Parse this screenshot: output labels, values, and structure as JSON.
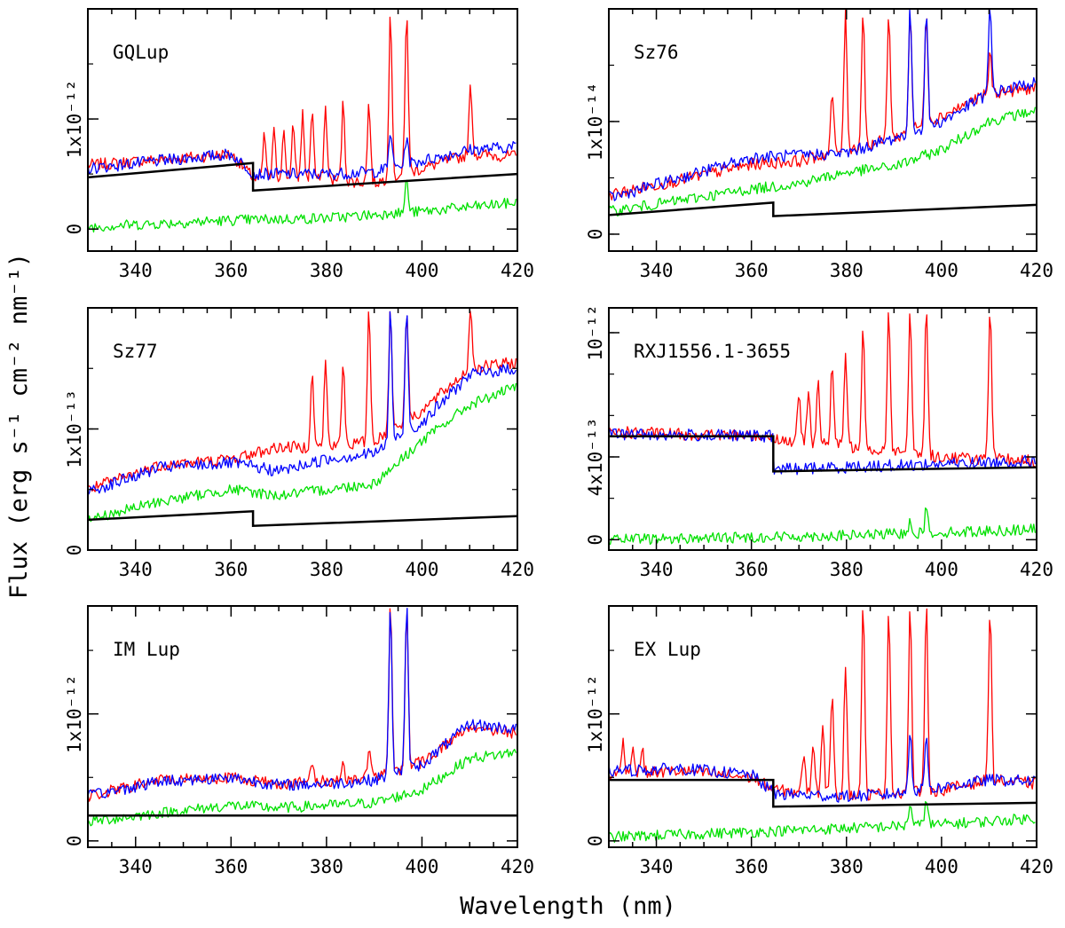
{
  "figure": {
    "xlabel": "Wavelength (nm)",
    "ylabel": "Flux (erg s⁻¹ cm⁻² nm⁻¹)",
    "colors": {
      "red": "#ff0000",
      "blue": "#0000ff",
      "green": "#00e000",
      "model": "#000000"
    }
  },
  "chart_data": [
    {
      "type": "line",
      "title": "GQLup",
      "xlim": [
        330,
        420
      ],
      "ylim": [
        -0.2,
        2.0
      ],
      "x_ticks": [
        340,
        360,
        380,
        400,
        420
      ],
      "y_ticks": [
        {
          "value": 0,
          "label": "0"
        },
        {
          "value": 1,
          "label": "1x10⁻¹²"
        }
      ],
      "y_unit": "1x10⁻¹²",
      "balmer_jump_nm": 364.6,
      "series": [
        {
          "color": "red",
          "x": [
            330,
            345,
            360,
            365,
            380,
            390,
            400,
            410,
            420
          ],
          "y": [
            0.58,
            0.63,
            0.68,
            0.45,
            0.45,
            0.42,
            0.55,
            0.68,
            0.66
          ],
          "lines": [
            [
              367,
              0.85
            ],
            [
              369,
              0.88
            ],
            [
              371,
              0.9
            ],
            [
              373,
              0.95
            ],
            [
              375,
              1.05
            ],
            [
              377,
              1.1
            ],
            [
              379.8,
              1.1
            ],
            [
              383.5,
              1.15
            ],
            [
              388.9,
              1.15
            ],
            [
              393.4,
              2.0
            ],
            [
              396.8,
              2.0
            ],
            [
              410.2,
              1.3
            ]
          ]
        },
        {
          "color": "blue",
          "x": [
            330,
            345,
            360,
            365,
            380,
            390,
            400,
            410,
            420
          ],
          "y": [
            0.55,
            0.62,
            0.68,
            0.5,
            0.5,
            0.52,
            0.62,
            0.72,
            0.75
          ],
          "lines": [
            [
              393.4,
              0.9
            ],
            [
              396.8,
              0.85
            ]
          ]
        },
        {
          "color": "green",
          "x": [
            330,
            360,
            380,
            400,
            420
          ],
          "y": [
            0.02,
            0.08,
            0.1,
            0.16,
            0.24
          ],
          "lines": [
            [
              393.4,
              0.18
            ],
            [
              396.8,
              0.45
            ]
          ]
        },
        {
          "color": "model",
          "x": [
            330,
            364.6,
            364.6,
            420
          ],
          "y": [
            0.47,
            0.6,
            0.35,
            0.5
          ]
        }
      ]
    },
    {
      "type": "line",
      "title": "Sz76",
      "xlim": [
        330,
        420
      ],
      "ylim": [
        -0.15,
        2.0
      ],
      "x_ticks": [
        340,
        360,
        380,
        400,
        420
      ],
      "y_ticks": [
        {
          "value": 0,
          "label": "0"
        },
        {
          "value": 1,
          "label": "1x10⁻¹⁴"
        }
      ],
      "y_unit": "1x10⁻¹⁴",
      "balmer_jump_nm": 364.6,
      "series": [
        {
          "color": "red",
          "x": [
            330,
            345,
            360,
            370,
            380,
            390,
            400,
            410,
            420
          ],
          "y": [
            0.35,
            0.48,
            0.62,
            0.65,
            0.75,
            0.85,
            1.05,
            1.25,
            1.3
          ],
          "lines": [
            [
              377,
              1.25
            ],
            [
              379.8,
              2.0
            ],
            [
              383.5,
              2.0
            ],
            [
              388.9,
              2.0
            ],
            [
              393.4,
              2.0
            ],
            [
              396.8,
              2.0
            ],
            [
              410.2,
              1.6
            ]
          ]
        },
        {
          "color": "blue",
          "x": [
            330,
            345,
            360,
            370,
            380,
            390,
            400,
            410,
            420
          ],
          "y": [
            0.32,
            0.5,
            0.68,
            0.7,
            0.72,
            0.85,
            1.0,
            1.25,
            1.35
          ],
          "lines": [
            [
              393.4,
              2.0
            ],
            [
              396.8,
              2.0
            ],
            [
              410.2,
              2.0
            ]
          ]
        },
        {
          "color": "green",
          "x": [
            330,
            345,
            360,
            370,
            380,
            390,
            400,
            410,
            420
          ],
          "y": [
            0.2,
            0.3,
            0.4,
            0.45,
            0.55,
            0.6,
            0.75,
            1.0,
            1.1
          ],
          "lines": []
        },
        {
          "color": "model",
          "x": [
            330,
            364.6,
            364.6,
            420
          ],
          "y": [
            0.17,
            0.28,
            0.16,
            0.26
          ]
        }
      ]
    },
    {
      "type": "line",
      "title": "Sz77",
      "xlim": [
        330,
        420
      ],
      "ylim": [
        0,
        2.0
      ],
      "x_ticks": [
        340,
        360,
        380,
        400,
        420
      ],
      "y_ticks": [
        {
          "value": 0,
          "label": "0"
        },
        {
          "value": 1,
          "label": "1x10⁻¹³"
        }
      ],
      "y_unit": "1x10⁻¹³",
      "balmer_jump_nm": 364.6,
      "series": [
        {
          "color": "red",
          "x": [
            330,
            345,
            360,
            370,
            380,
            390,
            400,
            410,
            420
          ],
          "y": [
            0.5,
            0.7,
            0.75,
            0.85,
            0.85,
            0.9,
            1.15,
            1.5,
            1.55
          ],
          "lines": [
            [
              377,
              1.5
            ],
            [
              379.8,
              1.55
            ],
            [
              383.5,
              1.55
            ],
            [
              388.9,
              2.0
            ],
            [
              393.4,
              2.0
            ],
            [
              396.8,
              2.0
            ],
            [
              410.2,
              2.0
            ]
          ]
        },
        {
          "color": "blue",
          "x": [
            330,
            345,
            360,
            370,
            380,
            390,
            400,
            410,
            420
          ],
          "y": [
            0.48,
            0.68,
            0.72,
            0.65,
            0.75,
            0.8,
            1.05,
            1.45,
            1.5
          ],
          "lines": [
            [
              393.4,
              2.0
            ],
            [
              396.8,
              2.0
            ]
          ]
        },
        {
          "color": "green",
          "x": [
            330,
            345,
            360,
            370,
            380,
            390,
            400,
            410,
            420
          ],
          "y": [
            0.25,
            0.4,
            0.5,
            0.45,
            0.5,
            0.55,
            0.9,
            1.2,
            1.35
          ],
          "lines": []
        },
        {
          "color": "model",
          "x": [
            330,
            364.6,
            364.6,
            420
          ],
          "y": [
            0.25,
            0.32,
            0.2,
            0.28
          ]
        }
      ]
    },
    {
      "type": "line",
      "title": "RXJ1556.1-3655",
      "xlim": [
        330,
        420
      ],
      "ylim": [
        -0.05,
        1.12
      ],
      "x_ticks": [
        340,
        360,
        380,
        400,
        420
      ],
      "y_ticks": [
        {
          "value": 0,
          "label": "0"
        },
        {
          "value": 0.4,
          "label": "4x10⁻¹³"
        },
        {
          "value": 1.0,
          "label": "10⁻¹²"
        }
      ],
      "y_unit": "10⁻¹²",
      "balmer_jump_nm": 364.6,
      "series": [
        {
          "color": "red",
          "x": [
            330,
            345,
            364.6,
            366,
            380,
            400,
            420
          ],
          "y": [
            0.52,
            0.51,
            0.5,
            0.48,
            0.45,
            0.4,
            0.38
          ],
          "lines": [
            [
              370,
              0.7
            ],
            [
              372,
              0.73
            ],
            [
              374,
              0.78
            ],
            [
              377,
              0.85
            ],
            [
              379.8,
              0.9
            ],
            [
              383.5,
              1.05
            ],
            [
              388.9,
              1.12
            ],
            [
              393.4,
              1.12
            ],
            [
              396.8,
              1.12
            ],
            [
              410.2,
              1.12
            ]
          ]
        },
        {
          "color": "blue",
          "x": [
            330,
            364.6,
            364.6,
            420
          ],
          "y": [
            0.51,
            0.5,
            0.34,
            0.38
          ],
          "lines": []
        },
        {
          "color": "green",
          "x": [
            330,
            380,
            420
          ],
          "y": [
            0.0,
            0.02,
            0.05
          ],
          "lines": [
            [
              393.4,
              0.1
            ],
            [
              396.8,
              0.15
            ]
          ]
        },
        {
          "color": "model",
          "x": [
            330,
            364.6,
            364.6,
            420
          ],
          "y": [
            0.5,
            0.5,
            0.33,
            0.35
          ]
        }
      ]
    },
    {
      "type": "line",
      "title": "IM Lup",
      "xlim": [
        330,
        420
      ],
      "ylim": [
        -0.05,
        1.85
      ],
      "x_ticks": [
        340,
        360,
        380,
        400,
        420
      ],
      "y_ticks": [
        {
          "value": 0,
          "label": "0"
        },
        {
          "value": 1,
          "label": "1x10⁻¹²"
        }
      ],
      "y_unit": "1x10⁻¹²",
      "balmer_jump_nm": 364.6,
      "series": [
        {
          "color": "red",
          "x": [
            330,
            345,
            360,
            370,
            380,
            390,
            400,
            410,
            420
          ],
          "y": [
            0.35,
            0.48,
            0.5,
            0.45,
            0.47,
            0.5,
            0.62,
            0.9,
            0.85
          ],
          "lines": [
            [
              377,
              0.62
            ],
            [
              383.5,
              0.62
            ],
            [
              388.9,
              0.75
            ],
            [
              393.4,
              1.85
            ],
            [
              396.8,
              1.85
            ]
          ]
        },
        {
          "color": "blue",
          "x": [
            330,
            345,
            360,
            370,
            380,
            390,
            400,
            410,
            420
          ],
          "y": [
            0.35,
            0.47,
            0.5,
            0.44,
            0.45,
            0.48,
            0.6,
            0.92,
            0.88
          ],
          "lines": [
            [
              393.4,
              1.85
            ],
            [
              396.8,
              1.85
            ]
          ]
        },
        {
          "color": "green",
          "x": [
            330,
            345,
            360,
            370,
            380,
            390,
            400,
            410,
            420
          ],
          "y": [
            0.15,
            0.22,
            0.28,
            0.26,
            0.28,
            0.3,
            0.4,
            0.65,
            0.7
          ],
          "lines": []
        },
        {
          "color": "model",
          "x": [
            330,
            420
          ],
          "y": [
            0.2,
            0.2
          ]
        }
      ]
    },
    {
      "type": "line",
      "title": "EX Lup",
      "xlim": [
        330,
        420
      ],
      "ylim": [
        -0.05,
        1.85
      ],
      "x_ticks": [
        340,
        360,
        380,
        400,
        420
      ],
      "y_ticks": [
        {
          "value": 0,
          "label": "0"
        },
        {
          "value": 1,
          "label": "1x10⁻¹²"
        }
      ],
      "y_unit": "1x10⁻¹²",
      "balmer_jump_nm": 364.6,
      "series": [
        {
          "color": "red",
          "x": [
            330,
            345,
            360,
            365,
            380,
            390,
            400,
            410,
            420
          ],
          "y": [
            0.52,
            0.55,
            0.5,
            0.4,
            0.35,
            0.38,
            0.4,
            0.48,
            0.45
          ],
          "lines": [
            [
              333,
              0.8
            ],
            [
              335,
              0.75
            ],
            [
              337,
              0.72
            ],
            [
              371,
              0.7
            ],
            [
              373,
              0.8
            ],
            [
              375,
              0.95
            ],
            [
              377,
              1.2
            ],
            [
              379.8,
              1.4
            ],
            [
              383.5,
              1.85
            ],
            [
              388.9,
              1.85
            ],
            [
              393.4,
              1.85
            ],
            [
              396.8,
              1.85
            ],
            [
              410.2,
              1.85
            ]
          ]
        },
        {
          "color": "blue",
          "x": [
            330,
            345,
            360,
            365,
            380,
            390,
            400,
            410,
            420
          ],
          "y": [
            0.55,
            0.57,
            0.52,
            0.37,
            0.35,
            0.37,
            0.42,
            0.48,
            0.47
          ],
          "lines": [
            [
              393.4,
              0.9
            ],
            [
              396.8,
              0.85
            ]
          ]
        },
        {
          "color": "green",
          "x": [
            330,
            360,
            380,
            400,
            420
          ],
          "y": [
            0.03,
            0.07,
            0.1,
            0.13,
            0.18
          ],
          "lines": [
            [
              393.4,
              0.3
            ],
            [
              396.8,
              0.35
            ]
          ]
        },
        {
          "color": "model",
          "x": [
            330,
            364.6,
            364.6,
            420
          ],
          "y": [
            0.48,
            0.48,
            0.27,
            0.3
          ]
        }
      ]
    }
  ]
}
